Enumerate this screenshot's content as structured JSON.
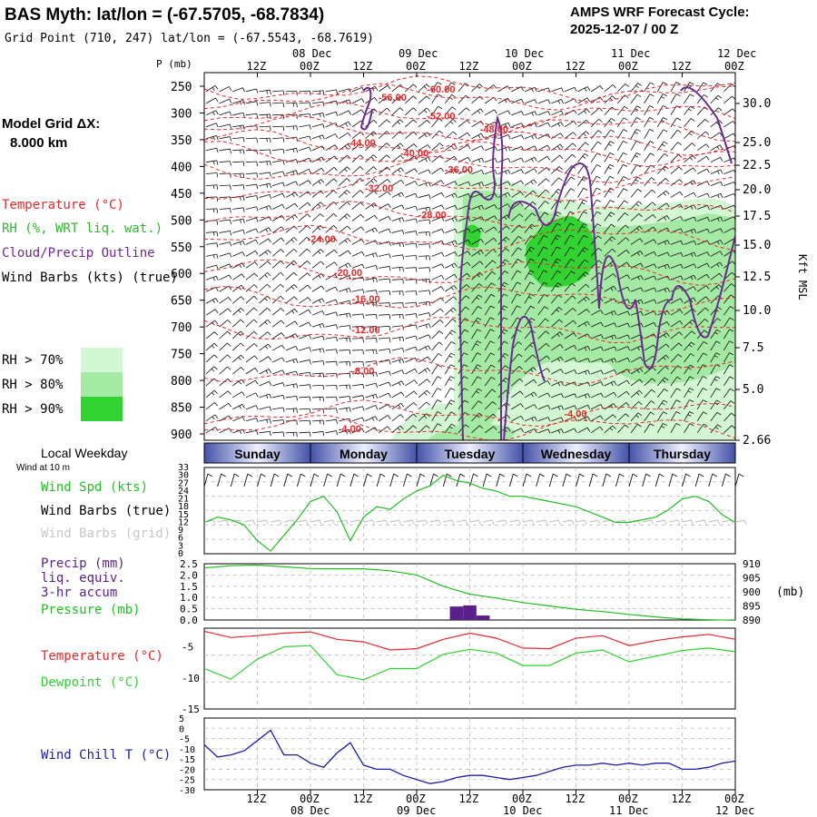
{
  "header": {
    "title": "BAS Myth:  lat/lon = (-67.5705, -68.7834)",
    "grid_point": "Grid Point (710, 247) lat/lon = (-67.5543, -68.7619)",
    "cycle_line1": "AMPS WRF Forecast Cycle:",
    "cycle_line2": "2025-12-07 / 00  Z"
  },
  "left_labels": {
    "model_grid_line1": "Model Grid ΔX:",
    "model_grid_line2": "8.000 km",
    "temperature": "Temperature (°C)",
    "rh": "RH (%, WRT liq. wat.)",
    "cloud": "Cloud/Precip Outline",
    "wind_barbs": "Wind Barbs (kts) (true)",
    "rh70": "RH > 70%",
    "rh80": "RH > 80%",
    "rh90": "RH > 90%",
    "local_weekday": "Local Weekday",
    "wind_at_10m": "Wind at 10 m",
    "wind_spd": "Wind Spd (kts)",
    "wind_barbs_true": "Wind Barbs (true)",
    "wind_barbs_grid": "Wind Barbs (grid)",
    "precip1": "Precip (mm)",
    "precip2": "liq. equiv.",
    "precip3": "3-hr accum",
    "pressure": "Pressure (mb)",
    "temperature2": "Temperature (°C)",
    "dewpoint": "Dewpoint (°C)",
    "wind_chill": "Wind Chill T (°C)",
    "p_axis_label": "P (mb)",
    "kft_label": "Kft MSL",
    "mb_label": "(mb)"
  },
  "colors": {
    "temperature": "#e8282a",
    "rh": "#2eb82e",
    "cloud": "#6a2a8f",
    "wind_spd": "#1fbf1f",
    "dewpoint": "#2fd12f",
    "wind_chill": "#1c1ca8",
    "precip": "#5b1f8a",
    "rh70": "#d2f7d2",
    "rh80": "#a4e9a4",
    "rh90": "#32d232",
    "day_band": "#5060b0"
  },
  "time_axis": {
    "top_hours": [
      "12Z",
      "00Z",
      "12Z",
      "00Z",
      "12Z",
      "00Z",
      "12Z",
      "00Z",
      "12Z",
      "00Z"
    ],
    "top_dates": [
      "08 Dec",
      "09 Dec",
      "10 Dec",
      "11 Dec",
      "12 Dec"
    ],
    "bottom_hours": [
      "12Z",
      "00Z",
      "12Z",
      "00Z",
      "12Z",
      "00Z",
      "12Z",
      "00Z",
      "12Z",
      "00Z"
    ],
    "bottom_dates": [
      "08 Dec",
      "09 Dec",
      "10 Dec",
      "11 Dec",
      "12 Dec"
    ],
    "weekdays": [
      "Sunday",
      "Monday",
      "Tuesday",
      "Wednesday",
      "Thursday"
    ]
  },
  "chart_data": [
    {
      "type": "heatmap",
      "pressure_ticks": [
        250,
        300,
        350,
        400,
        450,
        500,
        550,
        600,
        650,
        700,
        750,
        800,
        850,
        900
      ],
      "height_ticks_kft": [
        "30.0",
        "25.0",
        "22.5",
        "20.0",
        "17.5",
        "15.0",
        "12.5",
        "10.0",
        "7.5",
        "5.0",
        "2.66"
      ],
      "isotherm_labels": [
        {
          "text": "-60.00",
          "hour": 54,
          "p": 255
        },
        {
          "text": "-56.00",
          "hour": 43,
          "p": 270
        },
        {
          "text": "-52.00",
          "hour": 54,
          "p": 305
        },
        {
          "text": "-48.00",
          "hour": 66,
          "p": 330
        },
        {
          "text": "-44.00",
          "hour": 36,
          "p": 355
        },
        {
          "text": "-40.00",
          "hour": 48,
          "p": 375
        },
        {
          "text": "-36.00",
          "hour": 58,
          "p": 405
        },
        {
          "text": "-32.00",
          "hour": 40,
          "p": 440
        },
        {
          "text": "-28.00",
          "hour": 52,
          "p": 490
        },
        {
          "text": "-24.00",
          "hour": 27,
          "p": 535
        },
        {
          "text": "-20.00",
          "hour": 33,
          "p": 598
        },
        {
          "text": "-16.00",
          "hour": 37,
          "p": 647
        },
        {
          "text": "-12.00",
          "hour": 37,
          "p": 705
        },
        {
          "text": "-8.00",
          "hour": 37,
          "p": 782
        },
        {
          "text": "-4.00",
          "hour": 85,
          "p": 862
        },
        {
          "text": "-4.00",
          "hour": 34,
          "p": 890
        }
      ]
    },
    {
      "type": "line",
      "name": "Wind Spd (kts)",
      "y_ticks": [
        0,
        3,
        6,
        9,
        12,
        15,
        18,
        21,
        24,
        27,
        30,
        33
      ],
      "x_hours": [
        0,
        3,
        6,
        9,
        12,
        15,
        18,
        21,
        24,
        27,
        30,
        33,
        36,
        39,
        42,
        45,
        48,
        51,
        54,
        57,
        60,
        63,
        66,
        69,
        72,
        75,
        78,
        81,
        84,
        87,
        90,
        93,
        96,
        99,
        102,
        105,
        108,
        111,
        114,
        117,
        120
      ],
      "values": [
        12,
        14,
        13,
        11,
        5,
        1,
        7,
        13,
        20,
        22,
        16,
        5,
        14,
        18,
        17,
        21,
        24,
        26,
        30,
        28,
        27,
        25,
        24,
        22,
        22,
        21,
        20,
        19,
        18,
        16,
        14,
        12,
        12,
        13,
        14,
        17,
        21,
        22,
        20,
        15,
        12
      ]
    },
    {
      "type": "bar",
      "name": "Precip (mm)",
      "y_ticks": [
        "0.0",
        "0.5",
        "1.0",
        "1.5",
        "2.0",
        "2.5"
      ],
      "bars": [
        {
          "hour": 57,
          "value": 0.6
        },
        {
          "hour": 60,
          "value": 0.65
        },
        {
          "hour": 63,
          "value": 0.2
        }
      ]
    },
    {
      "type": "line",
      "name": "Pressure (mb)",
      "y_ticks": [
        890,
        895,
        900,
        905,
        910
      ],
      "x_hours": [
        0,
        6,
        12,
        18,
        24,
        30,
        36,
        42,
        48,
        54,
        60,
        66,
        72,
        78,
        84,
        90,
        96,
        102,
        108,
        114,
        120
      ],
      "values": [
        908.5,
        909.3,
        909.5,
        908.9,
        908.3,
        908.2,
        908.2,
        907.5,
        906.0,
        902.0,
        899.2,
        897.8,
        896.2,
        895.0,
        893.8,
        893.0,
        892.0,
        891.1,
        890.4,
        890.1,
        889.9
      ]
    },
    {
      "type": "line",
      "name": "Temperature / Dewpoint (°C)",
      "y_ticks": [
        -15,
        -10,
        -5
      ],
      "series": [
        {
          "name": "Temperature (°C)",
          "x_hours": [
            0,
            6,
            12,
            18,
            24,
            30,
            36,
            42,
            48,
            54,
            60,
            66,
            72,
            78,
            84,
            90,
            96,
            102,
            108,
            114,
            120
          ],
          "values": [
            -2.5,
            -3.5,
            -3.2,
            -2.8,
            -2.6,
            -3.8,
            -4.2,
            -5.5,
            -5.3,
            -3.8,
            -2.8,
            -3.6,
            -5.2,
            -5.3,
            -3.6,
            -3.2,
            -4.8,
            -4.0,
            -3.4,
            -3.0,
            -3.8
          ]
        },
        {
          "name": "Dewpoint (°C)",
          "x_hours": [
            0,
            6,
            12,
            18,
            24,
            30,
            36,
            42,
            48,
            54,
            60,
            66,
            72,
            78,
            84,
            90,
            96,
            102,
            108,
            114,
            120
          ],
          "values": [
            -8.5,
            -10.2,
            -7.0,
            -5.0,
            -4.8,
            -9.5,
            -10.3,
            -8.5,
            -8.5,
            -6.2,
            -5.4,
            -6.0,
            -8.0,
            -8.0,
            -6.0,
            -5.5,
            -7.4,
            -6.5,
            -5.6,
            -5.2,
            -5.8
          ]
        }
      ]
    },
    {
      "type": "line",
      "name": "Wind Chill T (°C)",
      "y_ticks": [
        -30,
        -25,
        -20,
        -15,
        -10,
        -5,
        0,
        5
      ],
      "x_hours": [
        0,
        3,
        6,
        9,
        12,
        15,
        18,
        21,
        24,
        27,
        30,
        33,
        36,
        39,
        42,
        45,
        48,
        51,
        54,
        57,
        60,
        63,
        66,
        69,
        72,
        75,
        78,
        81,
        84,
        87,
        90,
        93,
        96,
        99,
        102,
        105,
        108,
        111,
        114,
        117,
        120
      ],
      "values": [
        -8,
        -14,
        -13,
        -11,
        -6,
        -1,
        -13,
        -13,
        -17,
        -19,
        -12,
        -7,
        -18,
        -20,
        -20,
        -23,
        -25,
        -27,
        -26,
        -24,
        -23,
        -23,
        -24,
        -25,
        -24,
        -23,
        -21,
        -19,
        -18,
        -18,
        -17,
        -18,
        -17,
        -18,
        -17,
        -17,
        -20,
        -20,
        -19,
        -17,
        -16
      ]
    }
  ]
}
